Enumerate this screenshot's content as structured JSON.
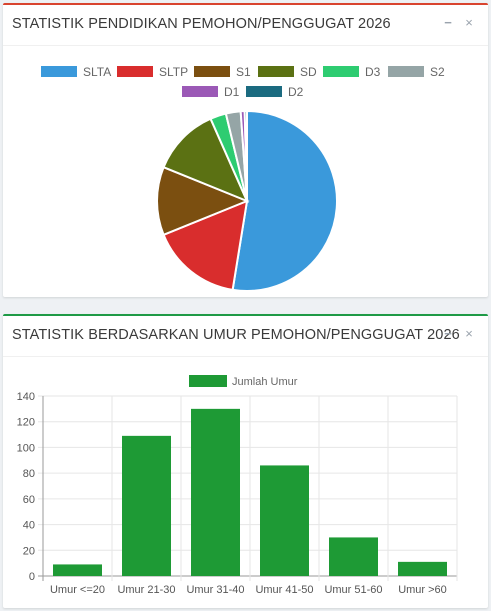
{
  "panel1": {
    "title": "STATISTIK PENDIDIKAN PEMOHON/PENGGUGAT 2026",
    "minimize_glyph": "−",
    "close_glyph": "×"
  },
  "panel2": {
    "title": "STATISTIK BERDASARKAN UMUR PEMOHON/PENGGUGAT 2026",
    "minimize_glyph": "−",
    "close_glyph": "×"
  },
  "colors": {
    "panel1_accent": "#d9442f",
    "panel2_accent": "#1e9a46"
  },
  "chart_data": [
    {
      "type": "pie",
      "labels": [
        "SLTA",
        "SLTP",
        "S1",
        "SD",
        "D3",
        "S2",
        "D1",
        "D2"
      ],
      "values": [
        51.5,
        16.0,
        12.0,
        12.0,
        2.8,
        2.6,
        0.7,
        0.4
      ],
      "colors": [
        "#3a99db",
        "#d92d2d",
        "#7b4f10",
        "#5b7113",
        "#2ecc71",
        "#95a5a6",
        "#9b59b6",
        "#1b6b80"
      ],
      "legend": "top"
    },
    {
      "type": "bar",
      "categories": [
        "Umur <=20",
        "Umur 21-30",
        "Umur 31-40",
        "Umur 41-50",
        "Umur 51-60",
        "Umur >60"
      ],
      "series": [
        {
          "name": "Jumlah Umur",
          "values": [
            9,
            109,
            130,
            86,
            30,
            11
          ],
          "color": "#1e9a35"
        }
      ],
      "yticks": [
        0,
        20,
        40,
        60,
        80,
        100,
        120,
        140
      ],
      "ylim": [
        0,
        140
      ],
      "grid": true,
      "legend": "top"
    }
  ]
}
